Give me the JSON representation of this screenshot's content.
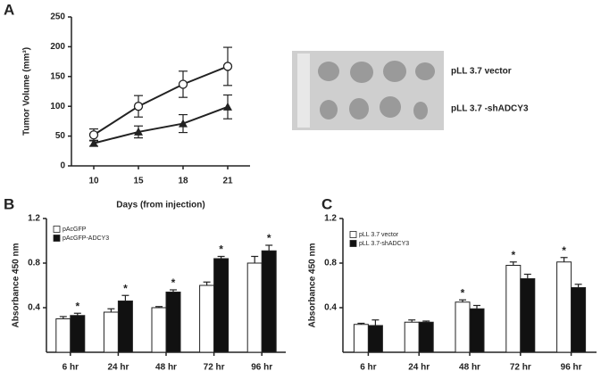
{
  "chart_data": [
    {
      "type": "line",
      "panel": "A",
      "ylabel": "Tumor Volume (mm³)",
      "xlabel": "Days (from injection)",
      "categories": [
        "10",
        "15",
        "18",
        "21"
      ],
      "ylim": [
        0,
        250
      ],
      "yticks": [
        0,
        50,
        100,
        150,
        200,
        250
      ],
      "series": [
        {
          "name": "pLL 3.7 vector",
          "color": "#222222",
          "marker": "circle-open",
          "values": [
            52,
            100,
            137,
            167
          ],
          "errors": [
            10,
            18,
            22,
            32
          ]
        },
        {
          "name": "pLL 3.7 -shADCY3",
          "color": "#222222",
          "marker": "triangle",
          "values": [
            38,
            57,
            71,
            99
          ],
          "errors": [
            5,
            10,
            15,
            20
          ]
        }
      ]
    },
    {
      "type": "bar",
      "panel": "B",
      "ylabel": "Absorbance 450 nm",
      "categories": [
        "6 hr",
        "24 hr",
        "48 hr",
        "72 hr",
        "96 hr"
      ],
      "ylim": [
        0,
        1.2
      ],
      "yticks": [
        0.4,
        0.8,
        1.2
      ],
      "series": [
        {
          "name": "pAcGFP",
          "color": "#ffffff",
          "values": [
            0.3,
            0.36,
            0.4,
            0.6,
            0.8
          ],
          "errors": [
            0.02,
            0.03,
            0.01,
            0.03,
            0.06
          ],
          "significance": [
            null,
            null,
            null,
            null,
            null
          ]
        },
        {
          "name": "pAcGFP-ADCY3",
          "color": "#111111",
          "values": [
            0.33,
            0.46,
            0.54,
            0.84,
            0.91
          ],
          "errors": [
            0.02,
            0.05,
            0.02,
            0.02,
            0.05
          ],
          "significance": [
            "*",
            "*",
            "*",
            "*",
            "*"
          ]
        }
      ]
    },
    {
      "type": "bar",
      "panel": "C",
      "ylabel": "Absorbance 450 nm",
      "categories": [
        "6 hr",
        "24 hr",
        "48 hr",
        "72 hr",
        "96 hr"
      ],
      "ylim": [
        0,
        1.2
      ],
      "yticks": [
        0.4,
        0.8,
        1.2
      ],
      "series": [
        {
          "name": "pLL 3.7 vector",
          "color": "#ffffff",
          "values": [
            0.25,
            0.27,
            0.45,
            0.78,
            0.81
          ],
          "errors": [
            0.01,
            0.02,
            0.02,
            0.03,
            0.04
          ],
          "significance": [
            null,
            null,
            "*",
            "*",
            "*"
          ]
        },
        {
          "name": "pLL 3.7-shADCY3",
          "color": "#111111",
          "values": [
            0.24,
            0.27,
            0.39,
            0.66,
            0.58
          ],
          "errors": [
            0.05,
            0.01,
            0.03,
            0.04,
            0.03
          ],
          "significance": [
            null,
            null,
            null,
            null,
            null
          ]
        }
      ]
    }
  ]
}
